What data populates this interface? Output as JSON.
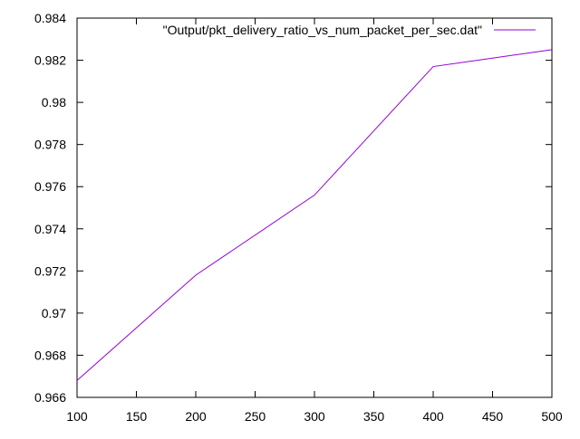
{
  "chart_data": {
    "type": "line",
    "title": "",
    "xlabel": "",
    "ylabel": "",
    "xlim": [
      100,
      500
    ],
    "ylim": [
      0.966,
      0.984
    ],
    "x_ticks": [
      100,
      150,
      200,
      250,
      300,
      350,
      400,
      450,
      500
    ],
    "x_tick_labels": [
      "100",
      "150",
      "200",
      "250",
      "300",
      "350",
      "400",
      "450",
      "500"
    ],
    "y_ticks": [
      0.966,
      0.968,
      0.97,
      0.972,
      0.974,
      0.976,
      0.978,
      0.98,
      0.982,
      0.984
    ],
    "y_tick_labels": [
      "0.966",
      "0.968",
      "0.97",
      "0.972",
      "0.974",
      "0.976",
      "0.978",
      "0.98",
      "0.982",
      "0.984"
    ],
    "grid": false,
    "legend_position": "top-right",
    "series": [
      {
        "name": "\"Output/pkt_delivery_ratio_vs_num_packet_per_sec.dat\"",
        "color": "#9400d3",
        "x": [
          100,
          200,
          300,
          400,
          500
        ],
        "y": [
          0.9668,
          0.9718,
          0.9756,
          0.9817,
          0.9825
        ]
      }
    ]
  }
}
